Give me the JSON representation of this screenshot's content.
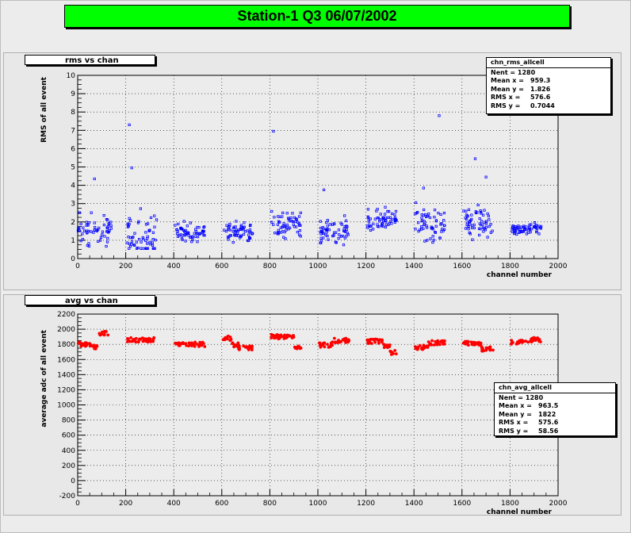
{
  "title": "Station-1 Q3 06/07/2002",
  "plots": [
    {
      "tab_label": "rms vs chan",
      "stats": {
        "name": "chn_rms_allcell",
        "rows": [
          {
            "k": "Nent = 1280",
            "v": ""
          },
          {
            "k": "Mean x =",
            "v": "959.3"
          },
          {
            "k": "Mean y =",
            "v": "1.826"
          },
          {
            "k": "RMS x =",
            "v": "576.6"
          },
          {
            "k": "RMS y =",
            "v": "0.7044"
          }
        ]
      }
    },
    {
      "tab_label": "avg vs chan",
      "stats": {
        "name": "chn_avg_allcell",
        "rows": [
          {
            "k": "Nent = 1280",
            "v": ""
          },
          {
            "k": "Mean x =",
            "v": "963.5"
          },
          {
            "k": "Mean y =",
            "v": "1822"
          },
          {
            "k": "RMS x =",
            "v": "575.6"
          },
          {
            "k": "RMS y =",
            "v": "58.56"
          }
        ]
      }
    }
  ],
  "colors": {
    "title_bg": "#00ff00",
    "rms_marker": "#0000ff",
    "avg_marker": "#ff0000"
  },
  "chart_data": [
    {
      "type": "scatter",
      "title": "rms vs chan",
      "xlabel": "channel number",
      "ylabel": "RMS of all event",
      "xlim": [
        0,
        2000
      ],
      "ylim": [
        0,
        10
      ],
      "xticks": [
        "0",
        "200",
        "400",
        "600",
        "800",
        "1000",
        "1200",
        "1400",
        "1600",
        "1800",
        "2000"
      ],
      "yticks": [
        "0",
        "1",
        "2",
        "3",
        "4",
        "5",
        "6",
        "7",
        "8",
        "9",
        "10"
      ],
      "grid": true,
      "groups": [
        {
          "x": [
            0,
            140
          ],
          "y_center": 1.6,
          "y_spread": 0.9
        },
        {
          "x": [
            205,
            330
          ],
          "y_center": 1.3,
          "y_spread": 1.2
        },
        {
          "x": [
            405,
            530
          ],
          "y_center": 1.4,
          "y_spread": 0.5
        },
        {
          "x": [
            605,
            730
          ],
          "y_center": 1.5,
          "y_spread": 0.6
        },
        {
          "x": [
            805,
            930
          ],
          "y_center": 1.8,
          "y_spread": 0.6
        },
        {
          "x": [
            1005,
            1130
          ],
          "y_center": 1.5,
          "y_spread": 0.7
        },
        {
          "x": [
            1205,
            1330
          ],
          "y_center": 2.1,
          "y_spread": 0.6
        },
        {
          "x": [
            1405,
            1530
          ],
          "y_center": 1.8,
          "y_spread": 0.9
        },
        {
          "x": [
            1605,
            1730
          ],
          "y_center": 2.0,
          "y_spread": 0.8
        },
        {
          "x": [
            1805,
            1930
          ],
          "y_center": 1.6,
          "y_spread": 0.3
        }
      ],
      "outliers": [
        {
          "x": 215,
          "y": 7.3
        },
        {
          "x": 815,
          "y": 6.95
        },
        {
          "x": 1505,
          "y": 7.8
        },
        {
          "x": 1655,
          "y": 5.45
        },
        {
          "x": 70,
          "y": 4.35
        },
        {
          "x": 225,
          "y": 4.95
        },
        {
          "x": 1025,
          "y": 3.75
        },
        {
          "x": 1440,
          "y": 3.85
        },
        {
          "x": 1700,
          "y": 4.45
        }
      ]
    },
    {
      "type": "scatter",
      "title": "avg vs chan",
      "xlabel": "channel number",
      "ylabel": "average adc of all event",
      "xlim": [
        0,
        2000
      ],
      "ylim": [
        -200,
        2200
      ],
      "xticks": [
        "0",
        "200",
        "400",
        "600",
        "800",
        "1000",
        "1200",
        "1400",
        "1600",
        "1800",
        "2000"
      ],
      "yticks": [
        "-200",
        "0",
        "200",
        "400",
        "600",
        "800",
        "1000",
        "1200",
        "1400",
        "1600",
        "1800",
        "2000",
        "2200"
      ],
      "grid": true,
      "segments": [
        {
          "x": [
            0,
            60
          ],
          "y": 1800
        },
        {
          "x": [
            60,
            90
          ],
          "y": 1760
        },
        {
          "x": [
            90,
            130
          ],
          "y": 1950
        },
        {
          "x": [
            205,
            320
          ],
          "y": 1860
        },
        {
          "x": [
            405,
            470
          ],
          "y": 1800
        },
        {
          "x": [
            470,
            530
          ],
          "y": 1800
        },
        {
          "x": [
            605,
            640
          ],
          "y": 1880
        },
        {
          "x": [
            640,
            670
          ],
          "y": 1790
        },
        {
          "x": [
            670,
            730
          ],
          "y": 1750
        },
        {
          "x": [
            805,
            900
          ],
          "y": 1900
        },
        {
          "x": [
            900,
            930
          ],
          "y": 1750
        },
        {
          "x": [
            1005,
            1060
          ],
          "y": 1790
        },
        {
          "x": [
            1060,
            1130
          ],
          "y": 1850
        },
        {
          "x": [
            1205,
            1270
          ],
          "y": 1840
        },
        {
          "x": [
            1270,
            1300
          ],
          "y": 1770
        },
        {
          "x": [
            1300,
            1330
          ],
          "y": 1690
        },
        {
          "x": [
            1405,
            1460
          ],
          "y": 1760
        },
        {
          "x": [
            1460,
            1530
          ],
          "y": 1820
        },
        {
          "x": [
            1605,
            1680
          ],
          "y": 1810
        },
        {
          "x": [
            1680,
            1730
          ],
          "y": 1740
        },
        {
          "x": [
            1805,
            1870
          ],
          "y": 1830
        },
        {
          "x": [
            1870,
            1930
          ],
          "y": 1860
        }
      ]
    }
  ]
}
